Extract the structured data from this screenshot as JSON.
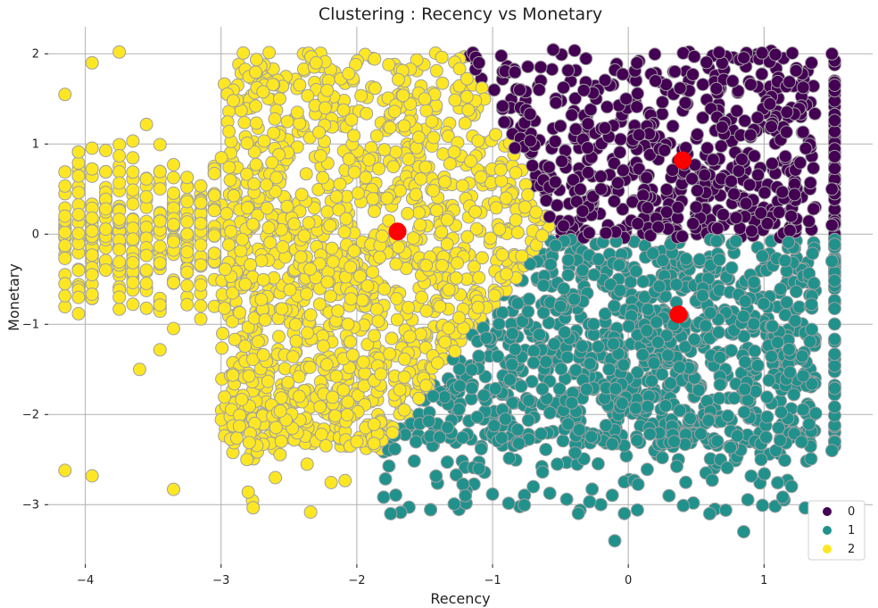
{
  "chart_data": {
    "type": "scatter",
    "title": "Clustering : Recency vs Monetary",
    "xlabel": "Recency",
    "ylabel": "Monetary",
    "xlim": [
      -4.3,
      1.8
    ],
    "ylim": [
      -3.7,
      2.3
    ],
    "x_ticks": [
      -4,
      -3,
      -2,
      -1,
      0,
      1
    ],
    "y_ticks": [
      -3,
      -2,
      -1,
      0,
      1,
      2
    ],
    "x_tick_labels": [
      "−4",
      "−3",
      "−2",
      "−1",
      "0",
      "1"
    ],
    "y_tick_labels": [
      "−3",
      "−2",
      "−1",
      "0",
      "1",
      "2"
    ],
    "grid": true,
    "legend": {
      "placement": "bottom-right",
      "entries": [
        {
          "label": "0",
          "color": "#440154"
        },
        {
          "label": "1",
          "color": "#21918c"
        },
        {
          "label": "2",
          "color": "#fde725"
        }
      ]
    },
    "point_edge_color": "#a0a0a0",
    "centroid_color": "#ff0000",
    "series": [
      {
        "cluster": "0",
        "color": "#440154",
        "region": {
          "x": [
            -1.3,
            1.4
          ],
          "y": [
            -0.05,
            2.05
          ]
        },
        "points": [
          [
            -1.1,
            1.9
          ],
          [
            -0.8,
            1.6
          ],
          [
            -0.5,
            1.2
          ],
          [
            -0.2,
            0.5
          ],
          [
            0.2,
            1.7
          ],
          [
            0.5,
            0.3
          ],
          [
            0.9,
            1.1
          ],
          [
            1.2,
            0.2
          ],
          [
            1.35,
            1.9
          ],
          [
            1.5,
            2.0
          ],
          [
            1.5,
            0.5
          ],
          [
            1.5,
            0.1
          ]
        ]
      },
      {
        "cluster": "1",
        "color": "#21918c",
        "region": {
          "x": [
            -1.8,
            1.5
          ],
          "y": [
            -3.4,
            -0.05
          ]
        },
        "points": [
          [
            -1.75,
            -3.1
          ],
          [
            -1.1,
            -2.6
          ],
          [
            -0.1,
            -3.4
          ],
          [
            0.85,
            -3.3
          ],
          [
            -0.5,
            -0.8
          ],
          [
            0.3,
            -2.9
          ],
          [
            1.1,
            -1.2
          ],
          [
            1.5,
            -2.4
          ],
          [
            0.6,
            -3.1
          ],
          [
            -1.2,
            -2.9
          ],
          [
            1.5,
            -0.3
          ],
          [
            -0.7,
            -2.8
          ]
        ]
      },
      {
        "cluster": "2",
        "color": "#fde725",
        "region": {
          "x": [
            -4.15,
            -0.5
          ],
          "y": [
            -2.85,
            2.05
          ]
        },
        "points": [
          [
            -4.15,
            1.55
          ],
          [
            -4.15,
            -2.62
          ],
          [
            -3.95,
            -2.68
          ],
          [
            -3.75,
            2.02
          ],
          [
            -3.35,
            -2.83
          ],
          [
            -2.8,
            -2.86
          ],
          [
            -2.6,
            -2.7
          ],
          [
            -3.95,
            1.9
          ],
          [
            -4.15,
            0.2
          ],
          [
            -3.6,
            -1.5
          ],
          [
            -2.3,
            1.9
          ],
          [
            -1.5,
            1.5
          ],
          [
            -0.9,
            0.4
          ],
          [
            -2.0,
            -2.3
          ]
        ]
      }
    ],
    "centroids": [
      {
        "cluster": "0",
        "x": 0.4,
        "y": 0.82
      },
      {
        "cluster": "1",
        "x": 0.37,
        "y": -0.89
      },
      {
        "cluster": "2",
        "x": -1.7,
        "y": 0.03
      }
    ]
  }
}
